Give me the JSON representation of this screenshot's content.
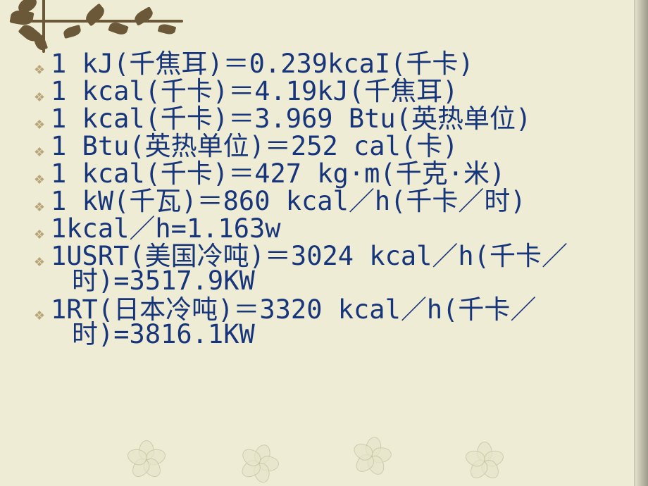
{
  "background_color": "#efecd5",
  "text_color": "#17357a",
  "bullet_color": "#b8a67a",
  "decoration_color": "#6b5838",
  "font_size": 37,
  "bullet_char": "❖",
  "lines": [
    {
      "text": "1 kJ(千焦耳)＝0.239kcaI(千卡)"
    },
    {
      "text": "1 kcal(千卡)＝4.19kJ(千焦耳)"
    },
    {
      "text": "1 kcal(千卡)＝3.969 Btu(英热单位)"
    },
    {
      "text": "1 Btu(英热单位)＝252 cal(卡)"
    },
    {
      "text": "1 kcal(千卡)＝427 kg·m(千克·米)"
    },
    {
      "text": "1 kW(千瓦)＝860 kcal／h(千卡／时)"
    },
    {
      "text": "1kcal／h=1.163w"
    },
    {
      "text": "1USRT(美国冷吨)＝3024 kcal／h(千卡／时)=3517.9KW",
      "wrap_at": 27
    },
    {
      "text": "1RT(日本冷吨)＝3320 kcal／h(千卡／时)=3816.1KW",
      "wrap_at": 25
    }
  ]
}
